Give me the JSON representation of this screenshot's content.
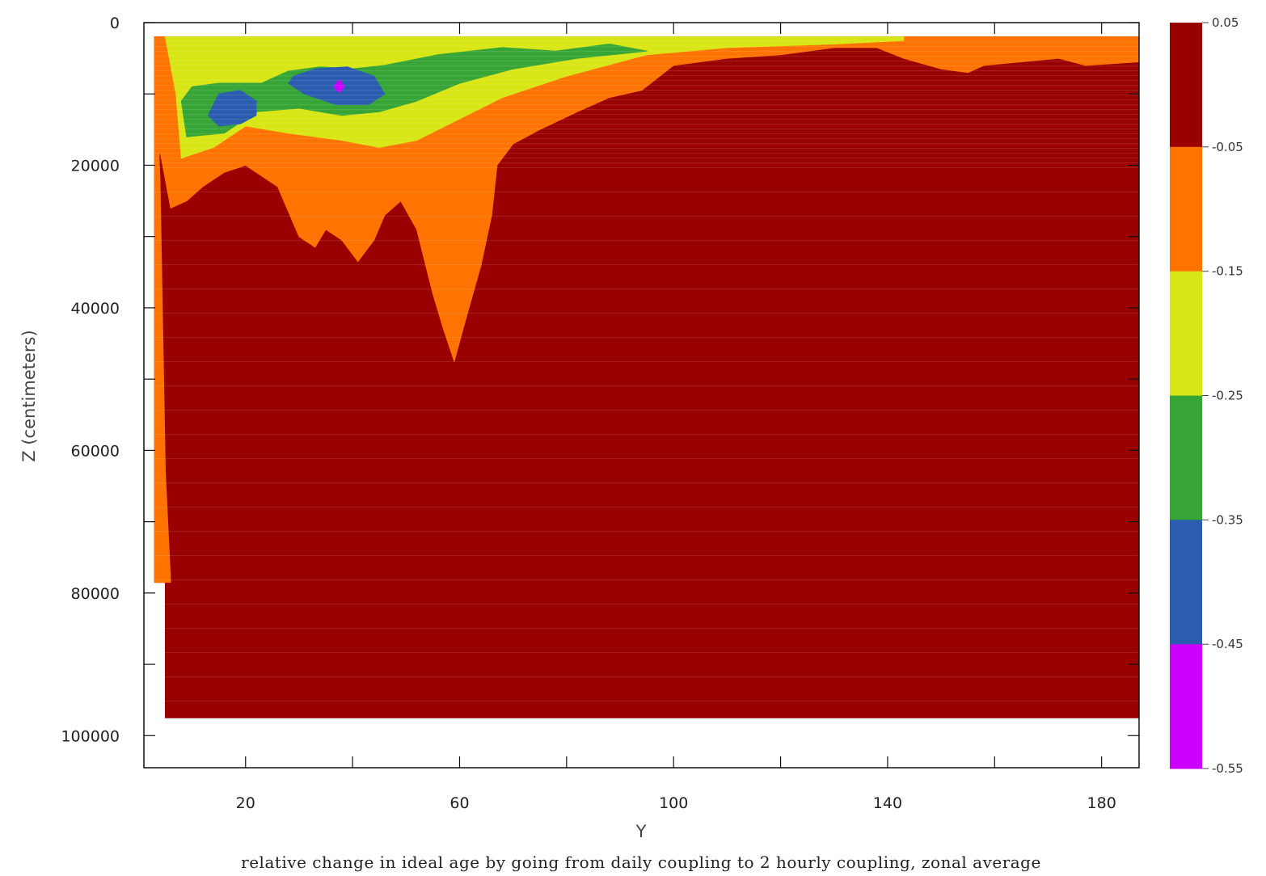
{
  "chart_data": {
    "type": "heatmap",
    "title": "relative change in ideal age by going from daily coupling to 2 hourly coupling, zonal average",
    "xlabel": "Y",
    "ylabel": "Z (centimeters)",
    "xlim": [
      1,
      187
    ],
    "ylim": [
      0,
      104500
    ],
    "y_inverted": true,
    "x_tick_labels": [
      "20",
      "60",
      "100",
      "140",
      "180"
    ],
    "y_tick_labels": [
      "0",
      "20000",
      "40000",
      "60000",
      "80000",
      "100000"
    ],
    "colorbar": {
      "labels": [
        "0.05",
        "-0.05",
        "-0.15",
        "-0.25",
        "-0.35",
        "-0.45",
        "-0.55"
      ],
      "bins": [
        {
          "range": [
            -0.05,
            0.05
          ],
          "color": "#990000"
        },
        {
          "range": [
            -0.15,
            -0.05
          ],
          "color": "#ff7300"
        },
        {
          "range": [
            -0.25,
            -0.15
          ],
          "color": "#d7e614"
        },
        {
          "range": [
            -0.35,
            -0.25
          ],
          "color": "#36a536"
        },
        {
          "range": [
            -0.45,
            -0.35
          ],
          "color": "#2a5cb0"
        },
        {
          "range": [
            -0.55,
            -0.45
          ],
          "color": "#cc00ff"
        }
      ]
    },
    "regions": [
      {
        "bin": "-0.05 to 0.05",
        "polygon": [
          [
            3,
            2000
          ],
          [
            187,
            2000
          ],
          [
            187,
            97500
          ],
          [
            5,
            97500
          ],
          [
            5,
            78500
          ],
          [
            3,
            78500
          ]
        ]
      },
      {
        "bin": "-0.15 to -0.05",
        "polygon": [
          [
            3,
            2000
          ],
          [
            3,
            22000
          ],
          [
            4,
            18000
          ],
          [
            6,
            26000
          ],
          [
            9,
            25000
          ],
          [
            12,
            23000
          ],
          [
            16,
            21000
          ],
          [
            20,
            20000
          ],
          [
            26,
            23000
          ],
          [
            30,
            30000
          ],
          [
            33,
            31500
          ],
          [
            35,
            29000
          ],
          [
            38,
            30500
          ],
          [
            41,
            33500
          ],
          [
            44,
            30500
          ],
          [
            46,
            27000
          ],
          [
            49,
            25000
          ],
          [
            52,
            29000
          ],
          [
            55,
            38000
          ],
          [
            57,
            43000
          ],
          [
            59,
            47500
          ],
          [
            61,
            42000
          ],
          [
            64,
            34000
          ],
          [
            66,
            27000
          ],
          [
            67,
            20000
          ],
          [
            70,
            17000
          ],
          [
            75,
            15000
          ],
          [
            82,
            12500
          ],
          [
            88,
            10500
          ],
          [
            94,
            9500
          ],
          [
            100,
            6000
          ],
          [
            110,
            5000
          ],
          [
            120,
            4500
          ],
          [
            130,
            3500
          ],
          [
            138,
            3500
          ],
          [
            143,
            5000
          ],
          [
            150,
            6500
          ],
          [
            155,
            7000
          ],
          [
            158,
            6000
          ],
          [
            165,
            5500
          ],
          [
            172,
            5000
          ],
          [
            177,
            6000
          ],
          [
            187,
            5500
          ],
          [
            187,
            2000
          ]
        ]
      },
      {
        "bin": "-0.15 to -0.05",
        "polygon": [
          [
            3,
            2000
          ],
          [
            3,
            3500
          ],
          [
            4,
            22000
          ],
          [
            5,
            63000
          ],
          [
            6,
            78500
          ],
          [
            3,
            78500
          ]
        ]
      },
      {
        "bin": "-0.25 to -0.15",
        "polygon": [
          [
            5,
            2000
          ],
          [
            7,
            10000
          ],
          [
            8,
            19000
          ],
          [
            14,
            17500
          ],
          [
            20,
            14500
          ],
          [
            28,
            15500
          ],
          [
            38,
            16500
          ],
          [
            45,
            17500
          ],
          [
            52,
            16500
          ],
          [
            60,
            13500
          ],
          [
            68,
            10500
          ],
          [
            80,
            7500
          ],
          [
            95,
            4500
          ],
          [
            110,
            3500
          ],
          [
            130,
            3000
          ],
          [
            143,
            2500
          ],
          [
            143,
            2000
          ]
        ]
      },
      {
        "bin": "-0.35 to -0.25",
        "polygon": [
          [
            8,
            11000
          ],
          [
            9,
            16000
          ],
          [
            16,
            15500
          ],
          [
            22,
            12500
          ],
          [
            30,
            12000
          ],
          [
            38,
            13000
          ],
          [
            45,
            12500
          ],
          [
            52,
            11000
          ],
          [
            60,
            8500
          ],
          [
            70,
            6500
          ],
          [
            82,
            5000
          ],
          [
            95,
            4000
          ],
          [
            88,
            3000
          ],
          [
            78,
            4000
          ],
          [
            68,
            3500
          ],
          [
            56,
            4500
          ],
          [
            46,
            6000
          ],
          [
            40,
            6500
          ],
          [
            34,
            6200
          ],
          [
            28,
            6800
          ],
          [
            23,
            8500
          ],
          [
            15,
            8500
          ],
          [
            10,
            9000
          ]
        ]
      },
      {
        "bin": "-0.45 to -0.35",
        "polygon": [
          [
            13,
            13000
          ],
          [
            15,
            14500
          ],
          [
            19,
            14200
          ],
          [
            22,
            13000
          ],
          [
            22,
            11000
          ],
          [
            19,
            9500
          ],
          [
            15,
            10000
          ]
        ]
      },
      {
        "bin": "-0.45 to -0.35",
        "polygon": [
          [
            28,
            8500
          ],
          [
            31,
            10000
          ],
          [
            37,
            11500
          ],
          [
            43,
            11500
          ],
          [
            46,
            10000
          ],
          [
            44,
            7500
          ],
          [
            39,
            6200
          ],
          [
            33,
            6500
          ],
          [
            29,
            7500
          ]
        ]
      },
      {
        "bin": "-0.55 to -0.45",
        "polygon": [
          [
            36.5,
            9000
          ],
          [
            37.5,
            8000
          ],
          [
            38.5,
            9000
          ],
          [
            37.5,
            9800
          ]
        ]
      }
    ]
  }
}
